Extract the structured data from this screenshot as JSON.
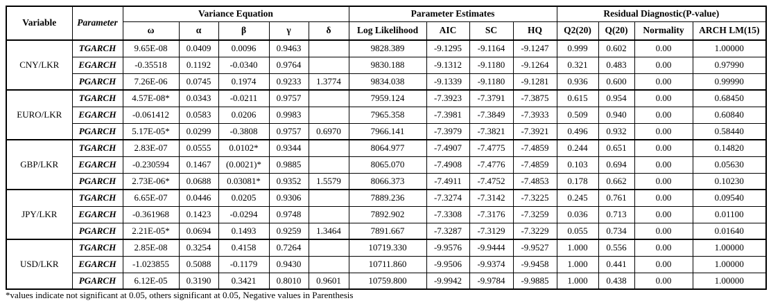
{
  "table": {
    "headers": {
      "variable": "Variable",
      "parameter": "Parameter",
      "groups": [
        {
          "label": "Variance Equation",
          "cols": [
            "ω",
            "α",
            "β",
            "γ",
            "δ"
          ]
        },
        {
          "label": "Parameter Estimates",
          "cols": [
            "Log Likelihood",
            "AIC",
            "SC",
            "HQ"
          ]
        },
        {
          "label": "Residual Diagnostic(P-value)",
          "cols": [
            "Q2(20)",
            "Q(20)",
            "Normality",
            "ARCH LM(15)"
          ]
        }
      ]
    },
    "groups": [
      {
        "variable": "CNY/LKR",
        "rows": [
          {
            "parameter": "TGARCH",
            "cells": [
              "9.65E-08",
              "0.0409",
              "0.0096",
              "0.9463",
              "",
              "9828.389",
              "-9.1295",
              "-9.1164",
              "-9.1247",
              "0.999",
              "0.602",
              "0.00",
              "1.00000"
            ]
          },
          {
            "parameter": "EGARCH",
            "cells": [
              "-0.35518",
              "0.1192",
              "-0.0340",
              "0.9764",
              "",
              "9830.188",
              "-9.1312",
              "-9.1180",
              "-9.1264",
              "0.321",
              "0.483",
              "0.00",
              "0.97990"
            ]
          },
          {
            "parameter": "PGARCH",
            "cells": [
              "7.26E-06",
              "0.0745",
              "0.1974",
              "0.9233",
              "1.3774",
              "9834.038",
              "-9.1339",
              "-9.1180",
              "-9.1281",
              "0.936",
              "0.600",
              "0.00",
              "0.99990"
            ]
          }
        ]
      },
      {
        "variable": "EURO/LKR",
        "rows": [
          {
            "parameter": "TGARCH",
            "cells": [
              "4.57E-08*",
              "0.0343",
              "-0.0211",
              "0.9757",
              "",
              "7959.124",
              "-7.3923",
              "-7.3791",
              "-7.3875",
              "0.615",
              "0.954",
              "0.00",
              "0.68450"
            ]
          },
          {
            "parameter": "EGARCH",
            "cells": [
              "-0.061412",
              "0.0583",
              "0.0206",
              "0.9983",
              "",
              "7965.358",
              "-7.3981",
              "-7.3849",
              "-7.3933",
              "0.509",
              "0.940",
              "0.00",
              "0.60840"
            ]
          },
          {
            "parameter": "PGARCH",
            "cells": [
              "5.17E-05*",
              "0.0299",
              "-0.3808",
              "0.9757",
              "0.6970",
              "7966.141",
              "-7.3979",
              "-7.3821",
              "-7.3921",
              "0.496",
              "0.932",
              "0.00",
              "0.58440"
            ]
          }
        ]
      },
      {
        "variable": "GBP/LKR",
        "rows": [
          {
            "parameter": "TGARCH",
            "cells": [
              "2.83E-07",
              "0.0555",
              "0.0102*",
              "0.9344",
              "",
              "8064.977",
              "-7.4907",
              "-7.4775",
              "-7.4859",
              "0.244",
              "0.651",
              "0.00",
              "0.14820"
            ]
          },
          {
            "parameter": "EGARCH",
            "cells": [
              "-0.230594",
              "0.1467",
              "(0.0021)*",
              "0.9885",
              "",
              "8065.070",
              "-7.4908",
              "-7.4776",
              "-7.4859",
              "0.103",
              "0.694",
              "0.00",
              "0.05630"
            ]
          },
          {
            "parameter": "PGARCH",
            "cells": [
              "2.73E-06*",
              "0.0688",
              "0.03081*",
              "0.9352",
              "1.5579",
              "8066.373",
              "-7.4911",
              "-7.4752",
              "-7.4853",
              "0.178",
              "0.662",
              "0.00",
              "0.10230"
            ]
          }
        ]
      },
      {
        "variable": "JPY/LKR",
        "rows": [
          {
            "parameter": "TGARCH",
            "cells": [
              "6.65E-07",
              "0.0446",
              "0.0205",
              "0.9306",
              "",
              "7889.236",
              "-7.3274",
              "-7.3142",
              "-7.3225",
              "0.245",
              "0.761",
              "0.00",
              "0.09540"
            ]
          },
          {
            "parameter": "EGARCH",
            "cells": [
              "-0.361968",
              "0.1423",
              "-0.0294",
              "0.9748",
              "",
              "7892.902",
              "-7.3308",
              "-7.3176",
              "-7.3259",
              "0.036",
              "0.713",
              "0.00",
              "0.01100"
            ]
          },
          {
            "parameter": "PGARCH",
            "cells": [
              "2.21E-05*",
              "0.0694",
              "0.1493",
              "0.9259",
              "1.3464",
              "7891.667",
              "-7.3287",
              "-7.3129",
              "-7.3229",
              "0.055",
              "0.734",
              "0.00",
              "0.01640"
            ]
          }
        ]
      },
      {
        "variable": "USD/LKR",
        "rows": [
          {
            "parameter": "TGARCH",
            "cells": [
              "2.85E-08",
              "0.3254",
              "0.4158",
              "0.7264",
              "",
              "10719.330",
              "-9.9576",
              "-9.9444",
              "-9.9527",
              "1.000",
              "0.556",
              "0.00",
              "1.00000"
            ]
          },
          {
            "parameter": "EGARCH",
            "cells": [
              "-1.023855",
              "0.5088",
              "-0.1179",
              "0.9430",
              "",
              "10711.860",
              "-9.9506",
              "-9.9374",
              "-9.9458",
              "1.000",
              "0.441",
              "0.00",
              "1.00000"
            ]
          },
          {
            "parameter": "PGARCH",
            "cells": [
              "6.12E-05",
              "0.3190",
              "0.3421",
              "0.8010",
              "0.9601",
              "10759.800",
              "-9.9942",
              "-9.9784",
              "-9.9885",
              "1.000",
              "0.438",
              "0.00",
              "1.00000"
            ]
          }
        ]
      }
    ],
    "footnote": "*values indicate not significant at 0.05, others significant at 0.05, Negative values in Parenthesis"
  }
}
